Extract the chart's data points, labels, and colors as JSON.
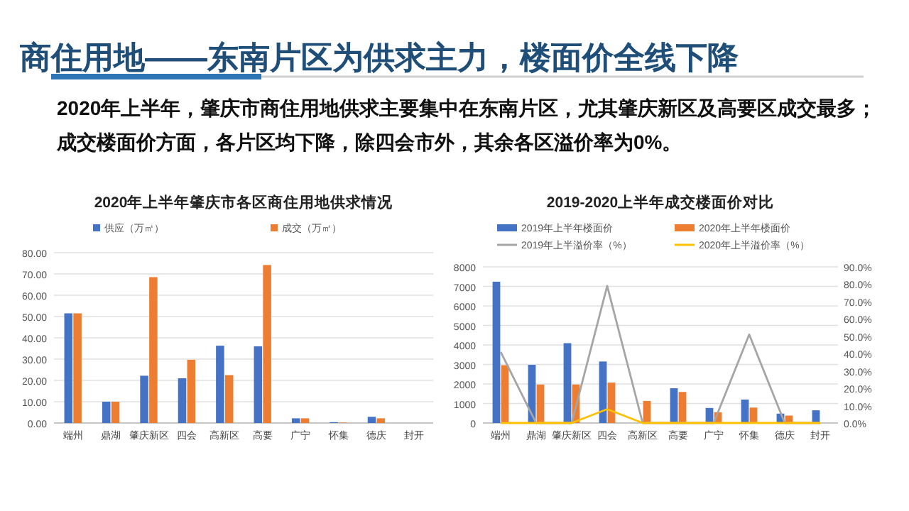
{
  "chart_data": [
    {
      "type": "other",
      "title": "商住用地——东南片区为供求主力，楼面价全线下降",
      "annotations": [
        "2020年上半年，肇庆市商住用地供求主要集中在东南片区，尤其肇庆新区及高要区成交最多；",
        "成交楼面价方面，各片区均下降，除四会市外，其余各区溢价率为0%。"
      ]
    },
    {
      "type": "bar",
      "title": "2020年上半年肇庆市各区商住用地供求情况",
      "categories": [
        "端州",
        "鼎湖",
        "肇庆新区",
        "四会",
        "高新区",
        "高要",
        "广宁",
        "怀集",
        "德庆",
        "封开"
      ],
      "series": [
        {
          "name": "供应（万㎡）",
          "color": "#4472c4",
          "values": [
            51.5,
            10,
            22.2,
            21,
            36.3,
            36,
            2.2,
            0.4,
            2.9,
            0
          ]
        },
        {
          "name": "成交（万㎡）",
          "color": "#ed7d31",
          "values": [
            51.5,
            10,
            68.5,
            29.7,
            22.5,
            74.2,
            2.2,
            0.2,
            2.2,
            0
          ]
        }
      ],
      "ylim": [
        0,
        80
      ],
      "yticks": [
        {
          "value": 0,
          "label": "0.00"
        },
        {
          "value": 10,
          "label": "10.00"
        },
        {
          "value": 20,
          "label": "20.00"
        },
        {
          "value": 30,
          "label": "30.00"
        },
        {
          "value": 40,
          "label": "40.00"
        },
        {
          "value": 50,
          "label": "50.00"
        },
        {
          "value": 60,
          "label": "60.00"
        },
        {
          "value": 70,
          "label": "70.00"
        },
        {
          "value": 80,
          "label": "80.00"
        }
      ],
      "grid": "y",
      "legend": "top"
    },
    {
      "type": "bar",
      "title": "2019-2020上半年成交楼面价对比",
      "categories": [
        "端州",
        "鼎湖",
        "肇庆新区",
        "四会",
        "高新区",
        "高要",
        "广宁",
        "怀集",
        "德庆",
        "封开"
      ],
      "series": [
        {
          "name": "2019年上半年楼面价",
          "color": "#4472c4",
          "values": [
            7240,
            2980,
            4090,
            3150,
            null,
            1780,
            770,
            1200,
            480,
            650
          ]
        },
        {
          "name": "2020年上半年楼面价",
          "color": "#ed7d31",
          "values": [
            2960,
            1970,
            1970,
            2070,
            1130,
            1590,
            550,
            790,
            380,
            null
          ]
        },
        {
          "name": "2019年上半溢价率（%）",
          "color": "#a5a5a5",
          "type": "line",
          "axis": "y2",
          "values": [
            41,
            0,
            0,
            79,
            0,
            0,
            0,
            51,
            0,
            0
          ]
        },
        {
          "name": "2020年上半溢价率（%）",
          "color": "#ffc000",
          "type": "line",
          "axis": "y2",
          "values": [
            0,
            0,
            0,
            8,
            0,
            0,
            0,
            0,
            0,
            0
          ]
        }
      ],
      "ylim": [
        0,
        8000
      ],
      "yticks": [
        0,
        1000,
        2000,
        3000,
        4000,
        5000,
        6000,
        7000,
        8000
      ],
      "y2lim": [
        0,
        90
      ],
      "y2ticks": [
        {
          "value": 0,
          "label": "0.0%"
        },
        {
          "value": 10,
          "label": "10.0%"
        },
        {
          "value": 20,
          "label": "20.0%"
        },
        {
          "value": 30,
          "label": "30.0%"
        },
        {
          "value": 40,
          "label": "40.0%"
        },
        {
          "value": 50,
          "label": "50.0%"
        },
        {
          "value": 60,
          "label": "60.0%"
        },
        {
          "value": 70,
          "label": "70.0%"
        },
        {
          "value": 80,
          "label": "80.0%"
        },
        {
          "value": 90,
          "label": "90.0%"
        }
      ],
      "grid": "y",
      "legend": "top"
    }
  ]
}
